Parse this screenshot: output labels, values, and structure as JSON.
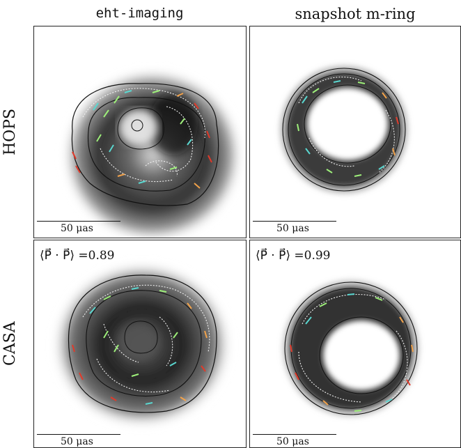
{
  "columns": [
    "eht-imaging",
    "snapshot m-ring"
  ],
  "rows": [
    "HOPS",
    "CASA"
  ],
  "panels": [
    {
      "id": "hops-ehtim",
      "scale_label": "50 μas",
      "metric": ""
    },
    {
      "id": "hops-mring",
      "scale_label": "50 μas",
      "metric": ""
    },
    {
      "id": "casa-ehtim",
      "scale_label": "50 μas",
      "metric": "⟨P⃗ · P⃗⟩ =0.89"
    },
    {
      "id": "casa-mring",
      "scale_label": "50 μas",
      "metric": "⟨P⃗ · P⃗⟩ =0.99"
    }
  ],
  "colors": {
    "tick_cool": "#5ad7d0",
    "tick_green": "#9ef07a",
    "tick_warm": "#f2a24a",
    "tick_red": "#e03a2a",
    "contour": "#111111",
    "dotted": "#eeeeee"
  }
}
